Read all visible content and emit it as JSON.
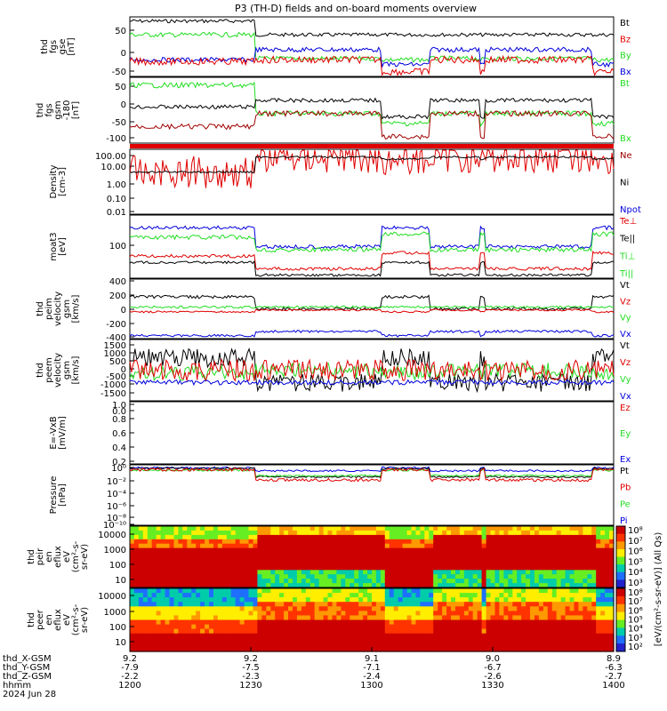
{
  "title": "P3 (TH-D) fields and on-board moments overview",
  "colors": {
    "black": "#000000",
    "red": "#e00000",
    "green": "#22dd22",
    "blue": "#0000dd",
    "darkred": "#a00000"
  },
  "chart_data": [
    {
      "type": "line",
      "ylabel": [
        "thd",
        "fgs",
        "gse",
        "[nT]"
      ],
      "yticks": [
        "50",
        "0",
        "-50"
      ],
      "legend": [
        "Bt",
        "Bz",
        "By",
        "Bx"
      ],
      "legend_colors": [
        "black",
        "red",
        "green",
        "blue"
      ],
      "ylim": [
        -60,
        70
      ]
    },
    {
      "type": "line",
      "ylabel": [
        "thd",
        "fgs",
        "gsm",
        "-180",
        "[nT]"
      ],
      "yticks": [
        "50",
        "0",
        "-50",
        "-100"
      ],
      "legend": [
        "Bt",
        "Bx"
      ],
      "legend_colors": [
        "green",
        "green"
      ],
      "ylim": [
        -115,
        65
      ]
    },
    {
      "type": "line",
      "ylabel": [
        "Density",
        "[cm-3]"
      ],
      "yticks": [
        "100.00",
        "10.00",
        "1.00",
        "0.10",
        "0.01"
      ],
      "legend": [
        "Ne",
        "Ni",
        "Npot"
      ],
      "legend_colors": [
        "darkred",
        "black",
        "blue"
      ],
      "scale": "log"
    },
    {
      "type": "line",
      "ylabel": [
        "moat3",
        "[eV]"
      ],
      "yticks": [
        "100"
      ],
      "legend": [
        "Te⊥",
        "Te||",
        "Ti⊥",
        "Ti||"
      ],
      "legend_colors": [
        "red",
        "black",
        "green",
        "green"
      ],
      "scale": "log"
    },
    {
      "type": "line",
      "ylabel": [
        "thd",
        "peim",
        "velocity",
        "gsm",
        "[km/s]"
      ],
      "yticks": [
        "400",
        "200",
        "0",
        "-200",
        "-400"
      ],
      "legend": [
        "Vt",
        "Vz",
        "Vy",
        "Vx"
      ],
      "legend_colors": [
        "black",
        "red",
        "green",
        "blue"
      ],
      "ylim": [
        -400,
        400
      ]
    },
    {
      "type": "line",
      "ylabel": [
        "thd",
        "peem",
        "velocity",
        "gsm",
        "[km/s]"
      ],
      "yticks": [
        "1500",
        "1000",
        "500",
        "0",
        "-500",
        "-1000",
        "-1500"
      ],
      "legend": [
        "Vt",
        "Vz",
        "Vy",
        "Vx"
      ],
      "legend_colors": [
        "black",
        "red",
        "green",
        "blue"
      ],
      "ylim": [
        -1500,
        1500
      ]
    },
    {
      "type": "line",
      "ylabel": [
        "E=-VxB",
        "[mV/m]"
      ],
      "yticks": [
        "1.0",
        "0.8",
        "0.6",
        "0.4",
        "0.2",
        "0.0"
      ],
      "legend": [
        "Ez",
        "Ey",
        "Ex"
      ],
      "legend_colors": [
        "red",
        "green",
        "blue"
      ],
      "ylim": [
        0,
        1
      ]
    },
    {
      "type": "line",
      "ylabel": [
        "Pressure",
        "[nPa]"
      ],
      "yticks": [
        "10⁰",
        "10⁻²",
        "10⁻⁴",
        "10⁻⁶",
        "10⁻⁸",
        "10⁻¹⁰"
      ],
      "legend": [
        "Pt",
        "Pb",
        "Pe",
        "Pi"
      ],
      "legend_colors": [
        "black",
        "red",
        "green",
        "blue"
      ],
      "scale": "log"
    },
    {
      "type": "heatmap",
      "ylabel": [
        "thd",
        "peir",
        "en",
        "eflux",
        "eV",
        "(cm²-s-",
        "sr-eV)"
      ],
      "yticks": [
        "10000",
        "1000",
        "100",
        "10"
      ],
      "colorbar_ticks": [
        "10⁸",
        "10⁷",
        "10⁶",
        "10⁵",
        "10⁴",
        "10³"
      ],
      "scale": "log"
    },
    {
      "type": "heatmap",
      "ylabel": [
        "thd",
        "peer",
        "en",
        "eflux",
        "eV",
        "(cm²-s-",
        "sr-eV)"
      ],
      "yticks": [
        "10000",
        "1000",
        "100",
        "10"
      ],
      "colorbar_ticks": [
        "10⁸",
        "10⁷",
        "10⁶",
        "10⁵",
        "10⁴",
        "10³",
        "10²"
      ],
      "scale": "log"
    }
  ],
  "colorbar_label": "[eV/(cm²-s-sr-eV)] (All Qs)",
  "ephemeris": {
    "labels": [
      "thd_X-GSM",
      "thd_Y-GSM",
      "thd_Z-GSM",
      "hhmm",
      "2024 Jun 28"
    ],
    "x_values": [
      "9.2",
      "9.2",
      "9.1",
      "9.0",
      "8.9"
    ],
    "y_values": [
      "-7.9",
      "-7.5",
      "-7.1",
      "-6.7",
      "-6.3"
    ],
    "z_values": [
      "-2.2",
      "-2.3",
      "-2.4",
      "-2.6",
      "-2.7"
    ],
    "time_values": [
      "1200",
      "1230",
      "1300",
      "1330",
      "1400"
    ]
  }
}
